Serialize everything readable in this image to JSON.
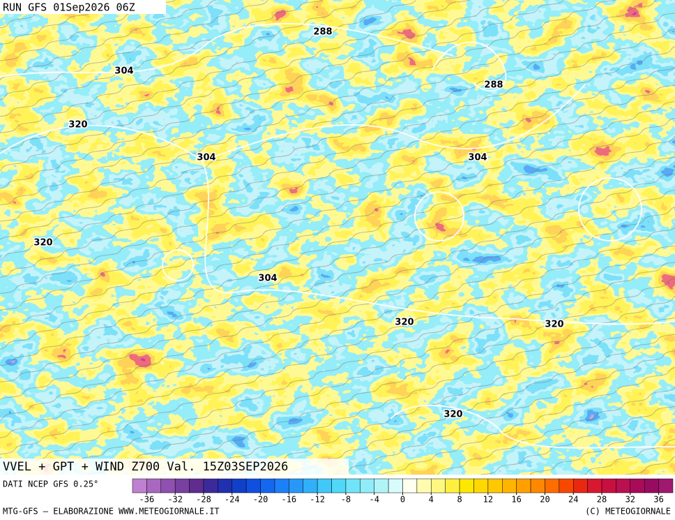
{
  "header": {
    "run": "RUN GFS 01Sep2026 06Z"
  },
  "map": {
    "contour_labels": [
      "288",
      "288",
      "304",
      "304",
      "304",
      "304",
      "320",
      "320",
      "320",
      "320",
      "320"
    ],
    "title": "VVEL + GPT + WIND Z700 Val. 15Z03SEP2026"
  },
  "colorbar": {
    "source": "DATI NCEP GFS 0.25°",
    "range": [
      -38,
      38
    ],
    "ticks": [
      -36,
      -32,
      -28,
      -24,
      -20,
      -16,
      -12,
      -8,
      -4,
      0,
      4,
      8,
      12,
      16,
      20,
      24,
      28,
      32,
      36
    ],
    "colors": [
      "#c080d0",
      "#a868c0",
      "#9050b0",
      "#7840a0",
      "#602c90",
      "#3c2a9a",
      "#2030b0",
      "#1040c8",
      "#1050e0",
      "#1468f0",
      "#1c80f8",
      "#2898f8",
      "#30b0f8",
      "#40c8f8",
      "#50d8f8",
      "#70e4f8",
      "#90ecf8",
      "#b0f4f8",
      "#d8fcfc",
      "#fffff0",
      "#fffcb0",
      "#fff880",
      "#fff040",
      "#ffe800",
      "#ffd800",
      "#ffc800",
      "#ffb400",
      "#ffa000",
      "#ff8800",
      "#ff6c00",
      "#f84800",
      "#e82810",
      "#d81830",
      "#c81040",
      "#b81050",
      "#a80c58",
      "#980c60",
      "#a01870"
    ]
  },
  "footer": {
    "left": "MTG-GFS – ELABORAZIONE WWW.METEOGIORNALE.IT",
    "right": "(C) METEOGIORNALE"
  }
}
